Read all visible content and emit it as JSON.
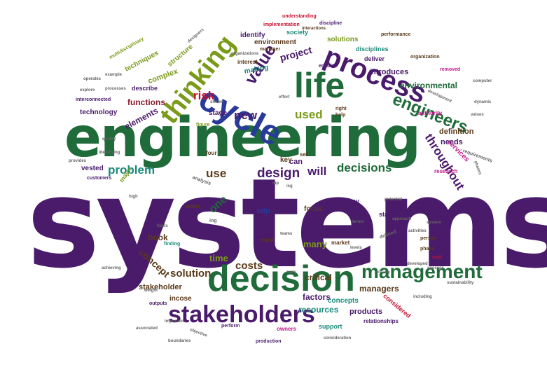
{
  "colors": {
    "purple": "#4a1a6b",
    "green": "#1f6b3a",
    "olive": "#7a9a1a",
    "teal": "#1a8a7a",
    "darkred": "#8a1a2a",
    "red": "#c8102e",
    "magenta": "#c0188a",
    "blue": "#2a3a9a",
    "brown": "#5a3a1a",
    "gray": "#666666"
  },
  "words": [
    {
      "text": "systems",
      "color": "purple",
      "weight": 100
    },
    {
      "text": "engineering",
      "color": "green",
      "weight": 60
    },
    {
      "text": "decision",
      "color": "green",
      "weight": 40
    },
    {
      "text": "life",
      "color": "green",
      "weight": 30
    },
    {
      "text": "cycle",
      "color": "blue",
      "weight": 30
    },
    {
      "text": "process",
      "color": "purple",
      "weight": 27
    },
    {
      "text": "thinking",
      "color": "olive",
      "weight": 24
    },
    {
      "text": "stakeholders",
      "color": "purple",
      "weight": 22
    },
    {
      "text": "management",
      "color": "green",
      "weight": 20
    },
    {
      "text": "value",
      "color": "purple",
      "weight": 15
    },
    {
      "text": "engineers",
      "color": "green",
      "weight": 15
    },
    {
      "text": "design",
      "color": "purple",
      "weight": 12
    },
    {
      "text": "problem",
      "color": "teal",
      "weight": 11
    },
    {
      "text": "decisions",
      "color": "green",
      "weight": 11
    },
    {
      "text": "throughout",
      "color": "purple",
      "weight": 10
    },
    {
      "text": "will",
      "color": "purple",
      "weight": 10
    },
    {
      "text": "used",
      "color": "olive",
      "weight": 10
    },
    {
      "text": "risk",
      "color": "red",
      "weight": 9
    },
    {
      "text": "new",
      "color": "purple",
      "weight": 9
    },
    {
      "text": "use",
      "color": "brown",
      "weight": 9
    },
    {
      "text": "solution",
      "color": "brown",
      "weight": 8
    },
    {
      "text": "costs",
      "color": "brown",
      "weight": 7
    },
    {
      "text": "project",
      "color": "purple",
      "weight": 7
    },
    {
      "text": "one",
      "color": "green",
      "weight": 7
    },
    {
      "text": "concept",
      "color": "brown",
      "weight": 7
    },
    {
      "text": "time",
      "color": "olive",
      "weight": 7
    },
    {
      "text": "environmental",
      "color": "green",
      "weight": 7
    },
    {
      "text": "managers",
      "color": "brown",
      "weight": 6
    },
    {
      "text": "factors",
      "color": "purple",
      "weight": 6
    },
    {
      "text": "stakeholder",
      "color": "brown",
      "weight": 6
    },
    {
      "text": "resources",
      "color": "teal",
      "weight": 6
    },
    {
      "text": "critical",
      "color": "brown",
      "weight": 6
    },
    {
      "text": "many",
      "color": "olive",
      "weight": 6
    },
    {
      "text": "book",
      "color": "brown",
      "weight": 6
    },
    {
      "text": "products",
      "color": "purple",
      "weight": 6
    },
    {
      "text": "functions",
      "color": "darkred",
      "weight": 6
    },
    {
      "text": "elements",
      "color": "purple",
      "weight": 6
    },
    {
      "text": "technology",
      "color": "purple",
      "weight": 5
    },
    {
      "text": "identify",
      "color": "purple",
      "weight": 5
    },
    {
      "text": "environment",
      "color": "brown",
      "weight": 5
    },
    {
      "text": "introduces",
      "color": "purple",
      "weight": 5
    },
    {
      "text": "definition",
      "color": "brown",
      "weight": 5
    },
    {
      "text": "needs",
      "color": "purple",
      "weight": 5
    },
    {
      "text": "services",
      "color": "magenta",
      "weight": 5
    },
    {
      "text": "solutions",
      "color": "olive",
      "weight": 5
    },
    {
      "text": "complex",
      "color": "olive",
      "weight": 5
    },
    {
      "text": "structure",
      "color": "olive",
      "weight": 5
    },
    {
      "text": "techniques",
      "color": "olive",
      "weight": 5
    },
    {
      "text": "stage",
      "color": "purple",
      "weight": 5
    },
    {
      "text": "vested",
      "color": "purple",
      "weight": 5
    },
    {
      "text": "can",
      "color": "purple",
      "weight": 5
    },
    {
      "text": "key",
      "color": "brown",
      "weight": 5
    },
    {
      "text": "sdp",
      "color": "blue",
      "weight": 5
    },
    {
      "text": "focus",
      "color": "brown",
      "weight": 5
    },
    {
      "text": "incose",
      "color": "brown",
      "weight": 5
    },
    {
      "text": "concepts",
      "color": "teal",
      "weight": 5
    },
    {
      "text": "support",
      "color": "teal",
      "weight": 4
    },
    {
      "text": "society",
      "color": "teal",
      "weight": 4
    },
    {
      "text": "deliver",
      "color": "purple",
      "weight": 4
    },
    {
      "text": "making",
      "color": "teal",
      "weight": 4
    },
    {
      "text": "describe",
      "color": "purple",
      "weight": 4
    },
    {
      "text": "relationships",
      "color": "purple",
      "weight": 4
    },
    {
      "text": "disciplines",
      "color": "teal",
      "weight": 4
    },
    {
      "text": "stages",
      "color": "purple",
      "weight": 4
    },
    {
      "text": "considered",
      "color": "red",
      "weight": 4
    },
    {
      "text": "interest",
      "color": "brown",
      "weight": 4
    },
    {
      "text": "order",
      "color": "brown",
      "weight": 4
    },
    {
      "text": "must",
      "color": "brown",
      "weight": 4
    },
    {
      "text": "market",
      "color": "brown",
      "weight": 4
    },
    {
      "text": "major",
      "color": "olive",
      "weight": 4
    },
    {
      "text": "four",
      "color": "brown",
      "weight": 4
    },
    {
      "text": "set",
      "color": "brown",
      "weight": 4
    },
    {
      "text": "way",
      "color": "purple",
      "weight": 3
    },
    {
      "text": "research",
      "color": "magenta",
      "weight": 3
    },
    {
      "text": "authority",
      "color": "magenta",
      "weight": 3
    },
    {
      "text": "performance",
      "color": "brown",
      "weight": 3
    },
    {
      "text": "organization",
      "color": "brown",
      "weight": 3
    },
    {
      "text": "manager",
      "color": "brown",
      "weight": 3
    },
    {
      "text": "effects",
      "color": "purple",
      "weight": 3
    },
    {
      "text": "production",
      "color": "purple",
      "weight": 3
    },
    {
      "text": "owners",
      "color": "magenta",
      "weight": 3
    },
    {
      "text": "perform",
      "color": "purple",
      "weight": 3
    },
    {
      "text": "customers",
      "color": "purple",
      "weight": 3
    },
    {
      "text": "discipline",
      "color": "purple",
      "weight": 3
    },
    {
      "text": "implementation",
      "color": "red",
      "weight": 3
    },
    {
      "text": "understanding",
      "color": "red",
      "weight": 3
    },
    {
      "text": "interconnected",
      "color": "purple",
      "weight": 3
    },
    {
      "text": "outputs",
      "color": "purple",
      "weight": 3
    },
    {
      "text": "removed",
      "color": "magenta",
      "weight": 3
    },
    {
      "text": "enable",
      "color": "purple",
      "weight": 3
    },
    {
      "text": "person",
      "color": "brown",
      "weight": 3
    },
    {
      "text": "phase",
      "color": "brown",
      "weight": 3
    },
    {
      "text": "help",
      "color": "brown",
      "weight": 3
    },
    {
      "text": "right",
      "color": "brown",
      "weight": 3
    },
    {
      "text": "figure",
      "color": "olive",
      "weight": 3
    },
    {
      "text": "finding",
      "color": "teal",
      "weight": 3
    },
    {
      "text": "analysis",
      "color": "gray",
      "weight": 3
    },
    {
      "text": "cost",
      "color": "red",
      "weight": 3
    },
    {
      "text": "operates",
      "color": "gray",
      "weight": 3
    },
    {
      "text": "processes",
      "color": "gray",
      "weight": 3
    },
    {
      "text": "development",
      "color": "gray",
      "weight": 3
    },
    {
      "text": "requirements",
      "color": "gray",
      "weight": 3
    },
    {
      "text": "multidisciplinary",
      "color": "olive",
      "weight": 3
    },
    {
      "text": "interactions",
      "color": "brown",
      "weight": 3
    },
    {
      "text": "boundaries",
      "color": "gray",
      "weight": 3
    },
    {
      "text": "designers",
      "color": "gray",
      "weight": 3
    },
    {
      "text": "objective",
      "color": "gray",
      "weight": 3
    },
    {
      "text": "quality",
      "color": "gray",
      "weight": 3
    },
    {
      "text": "developed",
      "color": "gray",
      "weight": 3
    },
    {
      "text": "success",
      "color": "gray",
      "weight": 3
    },
    {
      "text": "sustainability",
      "color": "gray",
      "weight": 3
    },
    {
      "text": "potential",
      "color": "gray",
      "weight": 3
    },
    {
      "text": "approach",
      "color": "gray",
      "weight": 3
    },
    {
      "text": "activities",
      "color": "gray",
      "weight": 3
    },
    {
      "text": "system",
      "color": "gray",
      "weight": 3
    },
    {
      "text": "including",
      "color": "gray",
      "weight": 3
    },
    {
      "text": "phases",
      "color": "gray",
      "weight": 3
    },
    {
      "text": "clearly",
      "color": "gray",
      "weight": 3
    },
    {
      "text": "defined",
      "color": "gray",
      "weight": 3
    },
    {
      "text": "levels",
      "color": "gray",
      "weight": 3
    },
    {
      "text": "example",
      "color": "gray",
      "weight": 3
    },
    {
      "text": "computer",
      "color": "gray",
      "weight": 3
    },
    {
      "text": "dynamic",
      "color": "gray",
      "weight": 3
    },
    {
      "text": "values",
      "color": "gray",
      "weight": 3
    },
    {
      "text": "explore",
      "color": "gray",
      "weight": 3
    },
    {
      "text": "consideration",
      "color": "gray",
      "weight": 3
    },
    {
      "text": "organizations",
      "color": "gray",
      "weight": 3
    },
    {
      "text": "associated",
      "color": "gray",
      "weight": 3
    },
    {
      "text": "important",
      "color": "gray",
      "weight": 3
    },
    {
      "text": "early",
      "color": "gray",
      "weight": 3
    },
    {
      "text": "teams",
      "color": "gray",
      "weight": 3
    },
    {
      "text": "weight",
      "color": "gray",
      "weight": 3
    },
    {
      "text": "fields",
      "color": "gray",
      "weight": 3
    },
    {
      "text": "shown",
      "color": "gray",
      "weight": 3
    },
    {
      "text": "mp",
      "color": "gray",
      "weight": 3
    },
    {
      "text": "ing",
      "color": "gray",
      "weight": 3
    },
    {
      "text": "isg",
      "color": "gray",
      "weight": 3
    },
    {
      "text": "effort",
      "color": "gray",
      "weight": 3
    },
    {
      "text": "provides",
      "color": "gray",
      "weight": 3
    },
    {
      "text": "identifying",
      "color": "gray",
      "weight": 3
    },
    {
      "text": "terms",
      "color": "gray",
      "weight": 3
    },
    {
      "text": "achieving",
      "color": "gray",
      "weight": 3
    },
    {
      "text": "high",
      "color": "gray",
      "weight": 3
    }
  ]
}
